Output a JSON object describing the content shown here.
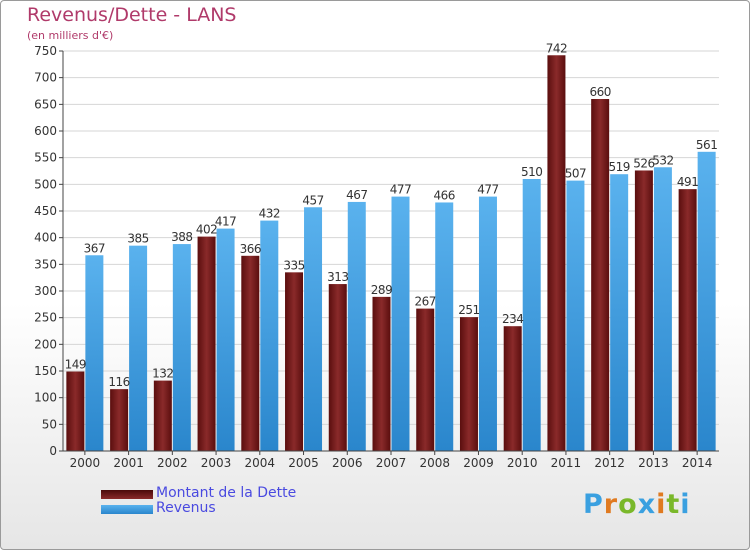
{
  "chart_data": {
    "type": "bar",
    "title": "Revenus/Dette - LANS",
    "subtitle": "(en milliers d'€)",
    "xlabel": "",
    "ylabel": "",
    "ylim": [
      0,
      750
    ],
    "yticks": [
      0,
      50,
      100,
      150,
      200,
      250,
      300,
      350,
      400,
      450,
      500,
      550,
      600,
      650,
      700,
      750
    ],
    "grid": true,
    "legend_position": "bottom-left",
    "categories": [
      "2000",
      "2001",
      "2002",
      "2003",
      "2004",
      "2005",
      "2006",
      "2007",
      "2008",
      "2009",
      "2010",
      "2011",
      "2012",
      "2013",
      "2014"
    ],
    "series": [
      {
        "name": "Montant de la Dette",
        "color": "#7a1e1e",
        "values": [
          149,
          116,
          132,
          402,
          366,
          335,
          313,
          289,
          267,
          251,
          234,
          742,
          660,
          526,
          491
        ]
      },
      {
        "name": "Revenus",
        "color": "#4aa3e6",
        "values": [
          367,
          385,
          388,
          417,
          432,
          457,
          467,
          477,
          466,
          477,
          510,
          507,
          519,
          532,
          561
        ]
      }
    ]
  },
  "logo": {
    "text": "Proxiti",
    "colors": [
      "#3aa0e0",
      "#e07a20",
      "#7ab82a",
      "#3aa0e0",
      "#e07a20",
      "#7ab82a",
      "#3aa0e0"
    ]
  }
}
